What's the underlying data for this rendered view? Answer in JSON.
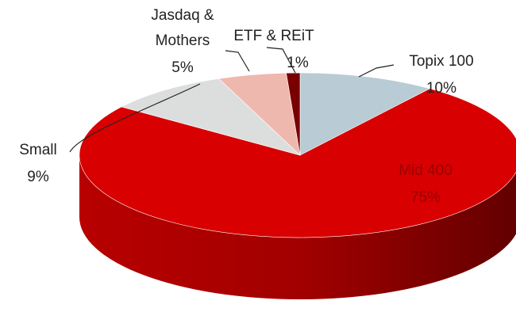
{
  "chart_data": {
    "type": "pie",
    "categories": [
      "Topix 100",
      "Mid 400",
      "Small",
      "Jasdaq & Mothers",
      "ETF & REiT"
    ],
    "values": [
      10,
      75,
      9,
      5,
      1
    ],
    "value_labels": [
      "10%",
      "75%",
      "9%",
      "5%",
      "1%"
    ],
    "colors": [
      "#b9cbd4",
      "#d80000",
      "#dcdedd",
      "#efb8af",
      "#7a0000"
    ]
  }
}
